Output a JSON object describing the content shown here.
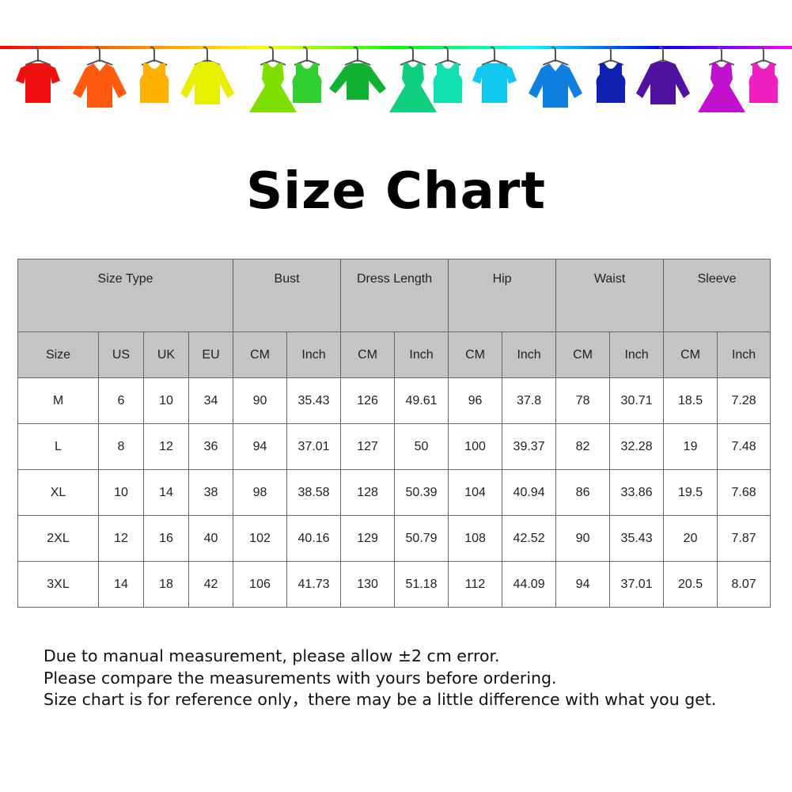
{
  "banner": {
    "line_colors": [
      "#ff0000",
      "#ff8000",
      "#ffff00",
      "#00ff00",
      "#00ffff",
      "#0000ff",
      "#ff00ff"
    ],
    "garments": [
      {
        "icon": "tshirt-icon",
        "color": "#f01010"
      },
      {
        "icon": "shirt-icon",
        "color": "#ff5a10"
      },
      {
        "icon": "tank-top-icon",
        "color": "#ffb000"
      },
      {
        "icon": "sweater-icon",
        "color": "#e8f000"
      },
      {
        "icon": "dress-icon",
        "color": "#7ee000"
      },
      {
        "icon": "tank-top-icon",
        "color": "#30d030"
      },
      {
        "icon": "long-sleeve-icon",
        "color": "#10b030"
      },
      {
        "icon": "dress-icon",
        "color": "#10d080"
      },
      {
        "icon": "tank-top-icon",
        "color": "#10e0b0"
      },
      {
        "icon": "tshirt-icon",
        "color": "#10c8f0"
      },
      {
        "icon": "shirt-icon",
        "color": "#1080e0"
      },
      {
        "icon": "tank-top-icon",
        "color": "#1020b0"
      },
      {
        "icon": "sweater-icon",
        "color": "#5010a0"
      },
      {
        "icon": "dress-icon",
        "color": "#c010d0"
      },
      {
        "icon": "tank-top-icon",
        "color": "#f020c0"
      }
    ]
  },
  "title": "Size Chart",
  "table": {
    "groups": [
      "Size Type",
      "Bust",
      "Dress Length",
      "Hip",
      "Waist",
      "Sleeve"
    ],
    "subheaders": [
      "Size",
      "US",
      "UK",
      "EU",
      "CM",
      "Inch",
      "CM",
      "Inch",
      "CM",
      "Inch",
      "CM",
      "Inch",
      "CM",
      "Inch"
    ],
    "rows": [
      [
        "M",
        "6",
        "10",
        "34",
        "90",
        "35.43",
        "126",
        "49.61",
        "96",
        "37.8",
        "78",
        "30.71",
        "18.5",
        "7.28"
      ],
      [
        "L",
        "8",
        "12",
        "36",
        "94",
        "37.01",
        "127",
        "50",
        "100",
        "39.37",
        "82",
        "32.28",
        "19",
        "7.48"
      ],
      [
        "XL",
        "10",
        "14",
        "38",
        "98",
        "38.58",
        "128",
        "50.39",
        "104",
        "40.94",
        "86",
        "33.86",
        "19.5",
        "7.68"
      ],
      [
        "2XL",
        "12",
        "16",
        "40",
        "102",
        "40.16",
        "129",
        "50.79",
        "108",
        "42.52",
        "90",
        "35.43",
        "20",
        "7.87"
      ],
      [
        "3XL",
        "14",
        "18",
        "42",
        "106",
        "41.73",
        "130",
        "51.18",
        "112",
        "44.09",
        "94",
        "37.01",
        "20.5",
        "8.07"
      ]
    ]
  },
  "notes": [
    "Due to manual measurement, please allow ±2 cm error.",
    "Please compare the measurements with yours before ordering.",
    "Size chart is for reference only，there may be a little difference with what you get."
  ]
}
